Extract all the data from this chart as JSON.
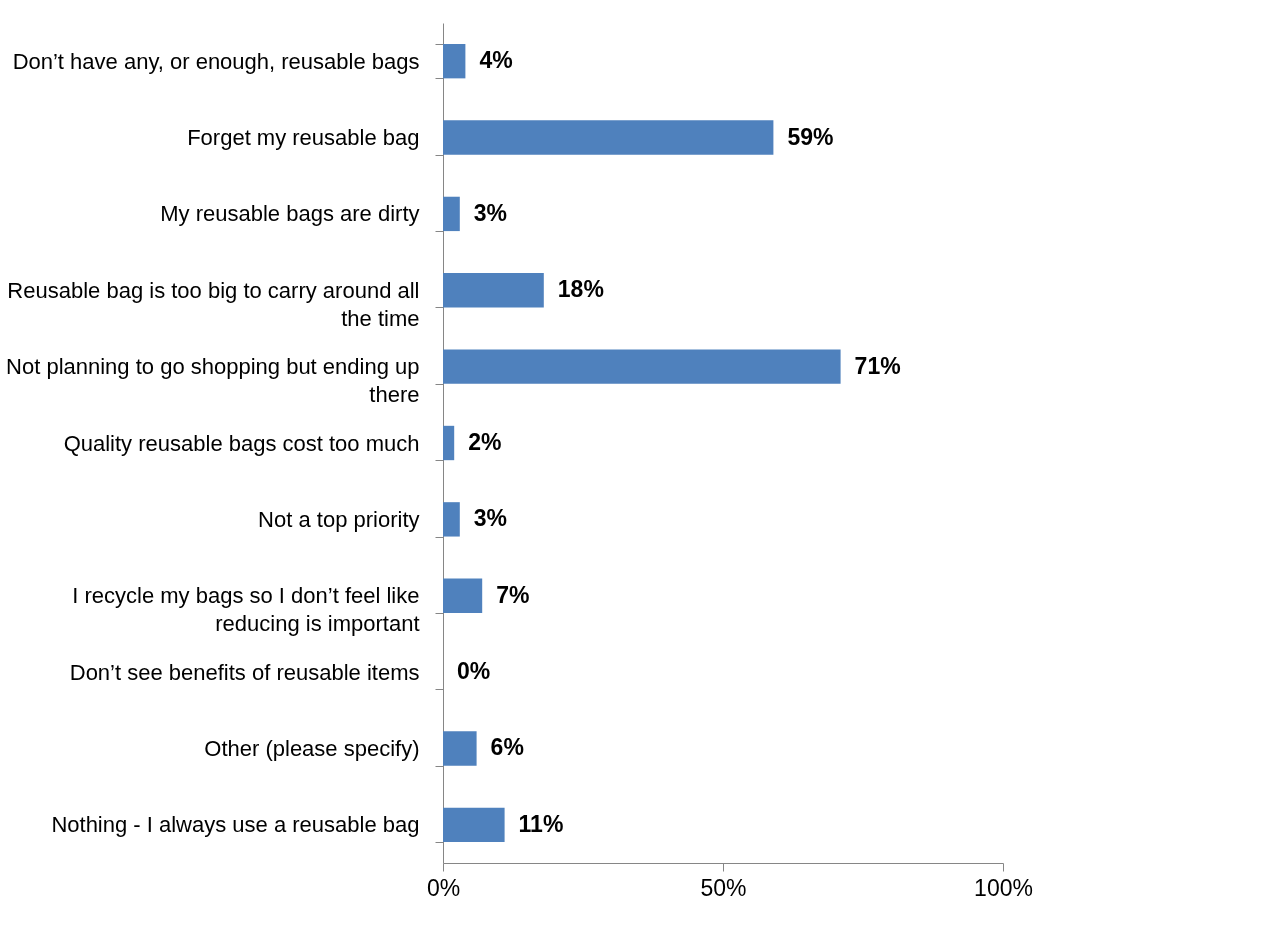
{
  "chart_data": {
    "type": "bar",
    "orientation": "horizontal",
    "categories": [
      "Don’t have any, or enough, reusable bags",
      "Forget my reusable bag",
      "My reusable bags are dirty",
      "Reusable bag is too big to carry around all the time",
      "Not planning to go shopping but ending up there",
      "Quality reusable bags cost too much",
      "Not a top priority",
      "I recycle my bags so I don’t feel like reducing is important",
      "Don’t see benefits of reusable items",
      "Other (please specify)",
      "Nothing - I always use a reusable bag"
    ],
    "values": [
      4,
      59,
      3,
      18,
      71,
      2,
      3,
      7,
      0,
      6,
      11
    ],
    "value_labels": [
      "4%",
      "59%",
      "3%",
      "18%",
      "71%",
      "2%",
      "3%",
      "7%",
      "0%",
      "6%",
      "11%"
    ],
    "color": "#4f81bd",
    "xlim": [
      0,
      100
    ],
    "xticks": [
      {
        "value": 0,
        "label": "0%"
      },
      {
        "value": 50,
        "label": "50%"
      },
      {
        "value": 100,
        "label": "100%"
      }
    ],
    "grid": false
  }
}
